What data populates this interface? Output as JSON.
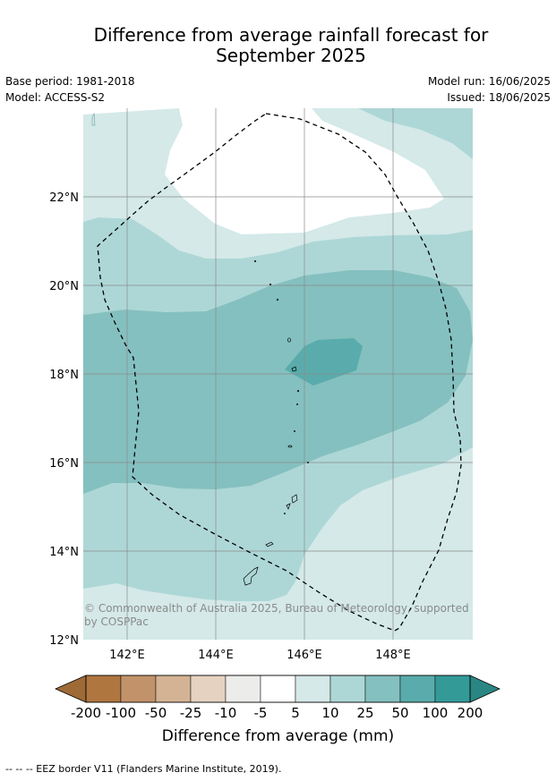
{
  "title_line1": "Difference from average rainfall forecast for",
  "title_line2": "September 2025",
  "meta": {
    "base_period": "Base period: 1981-2018",
    "model": "Model: ACCESS-S2",
    "model_run": "Model run: 16/06/2025",
    "issued": "Issued: 18/06/2025"
  },
  "map": {
    "x_ticks": [
      "142°E",
      "144°E",
      "146°E",
      "148°E"
    ],
    "y_ticks": [
      "22°N",
      "20°N",
      "18°N",
      "16°N",
      "14°N",
      "12°N"
    ],
    "copyright_line1": "© Commonwealth of Australia 2025, Bureau of Meteorology, supported",
    "copyright_line2": "by COSPPac",
    "contour_colors": {
      "5_to_10": "#d4e9e8",
      "10_to_25": "#add7d6",
      "25_to_50": "#84c0bf",
      "50_to_100": "#5aacac"
    }
  },
  "colorbar": {
    "labels": [
      "-200",
      "-100",
      "-50",
      "-25",
      "-10",
      "-5",
      "5",
      "10",
      "25",
      "50",
      "100",
      "200"
    ],
    "colors": [
      "#b07640",
      "#c2936a",
      "#d4b394",
      "#e6d2c0",
      "#ececea",
      "#ffffff",
      "#d4e9e8",
      "#add7d6",
      "#84c0bf",
      "#5aacac",
      "#339a98"
    ],
    "under_color": "#9e6a37",
    "over_color": "#2a8683",
    "title": "Difference from average (mm)"
  },
  "footnote": "--  --  -- EEZ border V11 (Flanders Marine Institute, 2019)."
}
